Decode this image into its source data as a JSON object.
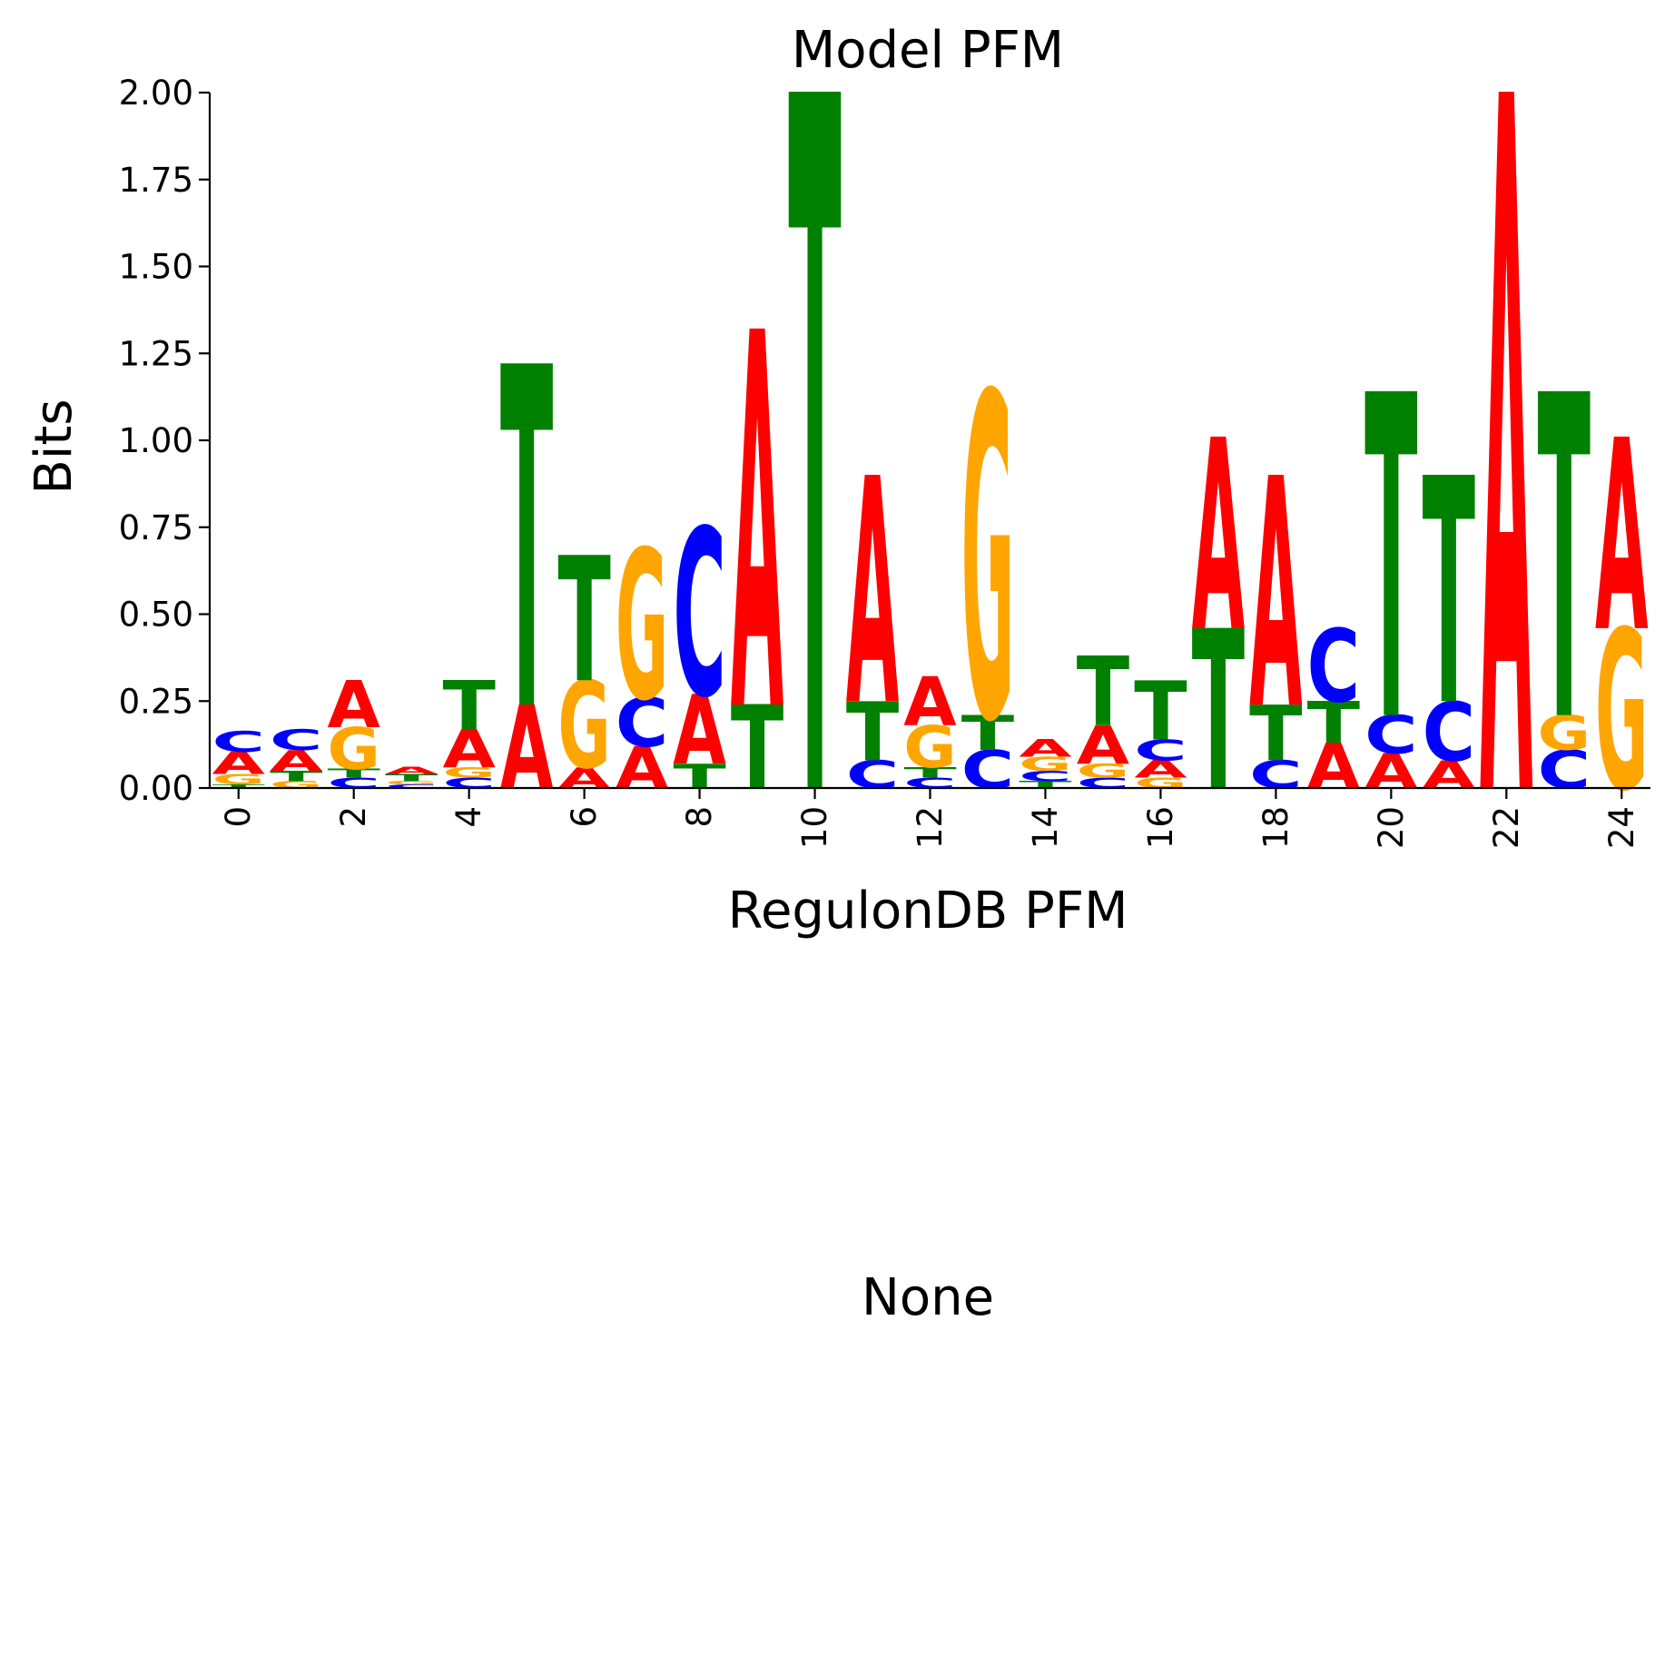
{
  "colors": {
    "A": "#ff0000",
    "C": "#0000ff",
    "G": "#ffa500",
    "T": "#008000",
    "axis": "#000000"
  },
  "chart_data": {
    "type": "sequence-logo",
    "title": "Model PFM",
    "ylabel": "Bits",
    "xlabel": "RegulonDB PFM",
    "ylim": [
      0,
      2
    ],
    "xlim": [
      -0.5,
      24.5
    ],
    "yticks": [
      0,
      0.25,
      0.5,
      0.75,
      1.0,
      1.25,
      1.5,
      1.75,
      2.0
    ],
    "ytick_labels": [
      "0.00",
      "0.25",
      "0.50",
      "0.75",
      "1.00",
      "1.25",
      "1.50",
      "1.75",
      "2.00"
    ],
    "xticks": [
      0,
      2,
      4,
      6,
      8,
      10,
      12,
      14,
      16,
      18,
      20,
      22,
      24
    ],
    "xtick_labels": [
      "0",
      "2",
      "4",
      "6",
      "8",
      "10",
      "12",
      "14",
      "16",
      "18",
      "20",
      "22",
      "24"
    ],
    "positions": [
      {
        "pos": 0,
        "stack": [
          [
            "T",
            0.01
          ],
          [
            "G",
            0.03
          ],
          [
            "A",
            0.065
          ],
          [
            "C",
            0.06
          ]
        ]
      },
      {
        "pos": 1,
        "stack": [
          [
            "G",
            0.02
          ],
          [
            "T",
            0.03
          ],
          [
            "A",
            0.06
          ],
          [
            "C",
            0.06
          ]
        ]
      },
      {
        "pos": 2,
        "stack": [
          [
            "C",
            0.03
          ],
          [
            "T",
            0.025
          ],
          [
            "G",
            0.12
          ],
          [
            "A",
            0.135
          ]
        ]
      },
      {
        "pos": 3,
        "stack": [
          [
            "C",
            0.01
          ],
          [
            "G",
            0.01
          ],
          [
            "T",
            0.02
          ],
          [
            "A",
            0.02
          ]
        ]
      },
      {
        "pos": 4,
        "stack": [
          [
            "C",
            0.03
          ],
          [
            "G",
            0.03
          ],
          [
            "A",
            0.11
          ],
          [
            "T",
            0.14
          ]
        ]
      },
      {
        "pos": 5,
        "stack": [
          [
            "A",
            0.24
          ],
          [
            "T",
            0.98
          ]
        ]
      },
      {
        "pos": 6,
        "stack": [
          [
            "A",
            0.06
          ],
          [
            "G",
            0.25
          ],
          [
            "T",
            0.36
          ]
        ]
      },
      {
        "pos": 7,
        "stack": [
          [
            "A",
            0.12
          ],
          [
            "C",
            0.14
          ],
          [
            "G",
            0.43
          ]
        ]
      },
      {
        "pos": 8,
        "stack": [
          [
            "T",
            0.07
          ],
          [
            "A",
            0.2
          ],
          [
            "C",
            0.48
          ]
        ]
      },
      {
        "pos": 9,
        "stack": [
          [
            "T",
            0.24
          ],
          [
            "A",
            1.08
          ]
        ]
      },
      {
        "pos": 10,
        "stack": [
          [
            "T",
            2.0
          ]
        ]
      },
      {
        "pos": 11,
        "stack": [
          [
            "C",
            0.08
          ],
          [
            "T",
            0.17
          ],
          [
            "A",
            0.65
          ]
        ]
      },
      {
        "pos": 12,
        "stack": [
          [
            "C",
            0.03
          ],
          [
            "T",
            0.03
          ],
          [
            "G",
            0.12
          ],
          [
            "A",
            0.14
          ]
        ]
      },
      {
        "pos": 13,
        "stack": [
          [
            "C",
            0.11
          ],
          [
            "T",
            0.1
          ],
          [
            "G",
            0.93
          ]
        ]
      },
      {
        "pos": 14,
        "stack": [
          [
            "T",
            0.02
          ],
          [
            "C",
            0.03
          ],
          [
            "G",
            0.04
          ],
          [
            "A",
            0.05
          ]
        ]
      },
      {
        "pos": 15,
        "stack": [
          [
            "C",
            0.03
          ],
          [
            "G",
            0.04
          ],
          [
            "A",
            0.11
          ],
          [
            "T",
            0.2
          ]
        ]
      },
      {
        "pos": 16,
        "stack": [
          [
            "G",
            0.03
          ],
          [
            "A",
            0.05
          ],
          [
            "C",
            0.06
          ],
          [
            "T",
            0.17
          ]
        ]
      },
      {
        "pos": 17,
        "stack": [
          [
            "T",
            0.46
          ],
          [
            "A",
            0.55
          ]
        ]
      },
      {
        "pos": 18,
        "stack": [
          [
            "C",
            0.08
          ],
          [
            "T",
            0.16
          ],
          [
            "A",
            0.66
          ]
        ]
      },
      {
        "pos": 19,
        "stack": [
          [
            "A",
            0.13
          ],
          [
            "T",
            0.12
          ],
          [
            "C",
            0.21
          ]
        ]
      },
      {
        "pos": 20,
        "stack": [
          [
            "A",
            0.1
          ],
          [
            "C",
            0.11
          ],
          [
            "T",
            0.93
          ]
        ]
      },
      {
        "pos": 21,
        "stack": [
          [
            "A",
            0.08
          ],
          [
            "C",
            0.17
          ],
          [
            "T",
            0.65
          ]
        ]
      },
      {
        "pos": 22,
        "stack": [
          [
            "A",
            2.0
          ]
        ]
      },
      {
        "pos": 23,
        "stack": [
          [
            "C",
            0.11
          ],
          [
            "G",
            0.1
          ],
          [
            "T",
            0.93
          ]
        ]
      },
      {
        "pos": 24,
        "stack": [
          [
            "G",
            0.46
          ],
          [
            "A",
            0.55
          ]
        ]
      }
    ]
  },
  "bottom_panel": {
    "label": "None"
  }
}
